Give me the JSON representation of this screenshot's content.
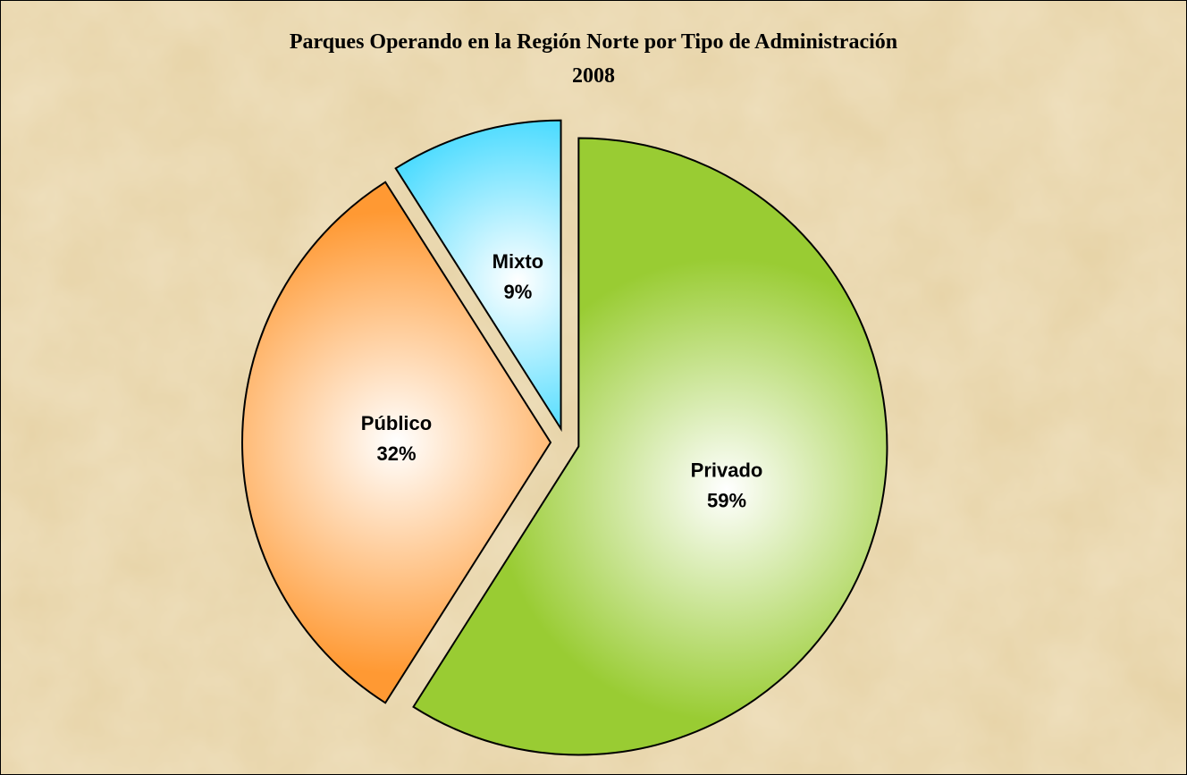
{
  "chart_data": {
    "type": "pie",
    "title": "Parques Operando en la Región Norte por  Tipo de Administración",
    "subtitle": "2008",
    "categories": [
      "Privado",
      "Público",
      "Mixto"
    ],
    "values": [
      59,
      32,
      9
    ],
    "value_labels": [
      "59%",
      "32%",
      "9%"
    ],
    "colors": [
      "#99cc33",
      "#ff9933",
      "#00ccff"
    ]
  }
}
